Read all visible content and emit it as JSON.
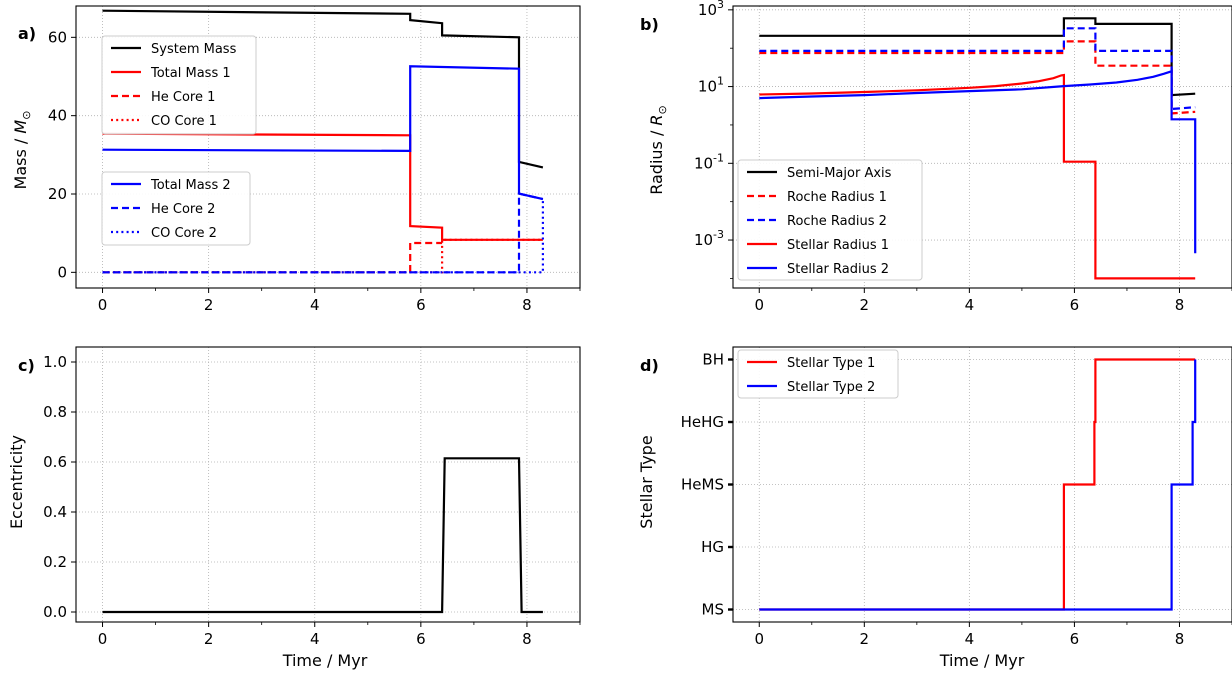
{
  "chart_data": [
    {
      "id": "a",
      "type": "line",
      "panel_label": "a)",
      "xlabel": "",
      "ylabel": "Mass / M_⊙",
      "ylabel_main": "Mass / ",
      "ylabel_sym": "M",
      "ylabel_sub": "⊙",
      "xlim": [
        -0.5,
        9.0
      ],
      "ylim": [
        -4,
        68
      ],
      "xticks": [
        "0",
        "2",
        "4",
        "6",
        "8"
      ],
      "yticks": [
        "0",
        "20",
        "40",
        "60"
      ],
      "grid": true,
      "legend_placement": "upper-left and middle-left",
      "series": [
        {
          "name": "System Mass",
          "color": "#000000",
          "dash": "solid",
          "x": [
            0,
            5.8,
            5.8,
            6.4,
            6.4,
            7.85,
            7.85,
            8.3
          ],
          "y": [
            66.8,
            66.0,
            64.4,
            63.6,
            60.5,
            60.0,
            28.2,
            26.8
          ]
        },
        {
          "name": "Total Mass 1",
          "color": "#ff0000",
          "dash": "solid",
          "x": [
            0,
            5.8,
            5.8,
            6.4,
            6.4,
            8.3
          ],
          "y": [
            35.4,
            35.0,
            11.8,
            11.4,
            8.3,
            8.3
          ]
        },
        {
          "name": "He Core 1",
          "color": "#ff0000",
          "dash": "dashed",
          "x": [
            0,
            5.8,
            5.8,
            6.4
          ],
          "y": [
            0,
            0,
            7.5,
            7.5
          ]
        },
        {
          "name": "CO Core 1",
          "color": "#ff0000",
          "dash": "dotted",
          "x": [
            0,
            6.4,
            6.4,
            8.3
          ],
          "y": [
            0,
            0,
            8.3,
            8.3
          ]
        },
        {
          "name": "Total Mass 2",
          "color": "#0000ff",
          "dash": "solid",
          "x": [
            0,
            5.8,
            5.8,
            7.85,
            7.85,
            8.3
          ],
          "y": [
            31.3,
            31.0,
            52.6,
            52.0,
            20.1,
            18.7
          ]
        },
        {
          "name": "He Core 2",
          "color": "#0000ff",
          "dash": "dashed",
          "x": [
            0,
            7.85,
            7.85,
            8.3
          ],
          "y": [
            0,
            0,
            20.1,
            18.7
          ]
        },
        {
          "name": "CO Core 2",
          "color": "#0000ff",
          "dash": "dotted",
          "x": [
            0,
            8.3,
            8.3
          ],
          "y": [
            0,
            0,
            18.7
          ]
        }
      ]
    },
    {
      "id": "b",
      "type": "line",
      "panel_label": "b)",
      "xlabel": "",
      "ylabel": "Radius / R_⊙",
      "ylabel_main": "Radius / ",
      "ylabel_sym": "R",
      "ylabel_sub": "⊙",
      "yscale": "log",
      "xlim": [
        -0.5,
        9.0
      ],
      "ylim_log10": [
        -4.25,
        3.1
      ],
      "xticks": [
        "0",
        "2",
        "4",
        "6",
        "8"
      ],
      "yticks_log10": [
        1,
        -1,
        -3,
        3
      ],
      "grid": true,
      "legend_placement": "lower-left",
      "series": [
        {
          "name": "Semi-Major Axis",
          "color": "#000000",
          "dash": "solid",
          "x": [
            0,
            5.8,
            5.8,
            6.4,
            6.4,
            7.85,
            7.85,
            8.3
          ],
          "y": [
            210,
            210,
            600,
            600,
            430,
            430,
            6.0,
            6.5
          ]
        },
        {
          "name": "Roche Radius 1",
          "color": "#ff0000",
          "dash": "dashed",
          "x": [
            0,
            5.8,
            5.8,
            6.4,
            6.4,
            7.85,
            7.85,
            8.3
          ],
          "y": [
            75,
            75,
            150,
            150,
            35,
            35,
            2.0,
            2.2
          ]
        },
        {
          "name": "Roche Radius 2",
          "color": "#0000ff",
          "dash": "dashed",
          "x": [
            0,
            5.8,
            5.8,
            6.4,
            6.4,
            7.85,
            7.85,
            8.3
          ],
          "y": [
            85,
            85,
            330,
            330,
            85,
            85,
            2.6,
            2.9
          ]
        },
        {
          "name": "Stellar Radius 1",
          "color": "#ff0000",
          "dash": "solid",
          "x": [
            0,
            1,
            2,
            3,
            4,
            4.5,
            5,
            5.3,
            5.6,
            5.75,
            5.8,
            5.8,
            6.4,
            6.4,
            8.3
          ],
          "y": [
            6.2,
            6.6,
            7.2,
            8.0,
            9.3,
            10.3,
            12.0,
            13.6,
            16.5,
            19.5,
            20,
            0.11,
            0.11,
            0.0001,
            0.0001
          ]
        },
        {
          "name": "Stellar Radius 2",
          "color": "#0000ff",
          "dash": "solid",
          "x": [
            0,
            1,
            2,
            3,
            4,
            5,
            5.8,
            6.3,
            6.8,
            7.2,
            7.5,
            7.7,
            7.85,
            7.85,
            8.3,
            8.3
          ],
          "y": [
            5.0,
            5.5,
            6.0,
            6.8,
            7.6,
            8.5,
            10.3,
            11.3,
            12.8,
            15.0,
            18.0,
            21.5,
            25,
            1.4,
            1.4,
            0.00045
          ]
        }
      ]
    },
    {
      "id": "c",
      "type": "line",
      "panel_label": "c)",
      "xlabel": "Time / Myr",
      "ylabel": "Eccentricity",
      "xlim": [
        -0.5,
        9.0
      ],
      "ylim": [
        -0.04,
        1.06
      ],
      "xticks": [
        "0",
        "2",
        "4",
        "6",
        "8"
      ],
      "yticks": [
        "0.0",
        "0.2",
        "0.4",
        "0.6",
        "0.8",
        "1.0"
      ],
      "grid": true,
      "series": [
        {
          "name": "",
          "color": "#000000",
          "dash": "solid",
          "x": [
            0,
            6.4,
            6.45,
            7.85,
            7.9,
            8.3
          ],
          "y": [
            0,
            0,
            0.615,
            0.615,
            0,
            0
          ]
        }
      ]
    },
    {
      "id": "d",
      "type": "line",
      "panel_label": "d)",
      "xlabel": "Time / Myr",
      "ylabel": "Stellar Type",
      "xlim": [
        -0.5,
        9.0
      ],
      "ylim": [
        -0.2,
        4.2
      ],
      "xticks": [
        "0",
        "2",
        "4",
        "6",
        "8"
      ],
      "yticks": [
        "MS",
        "HG",
        "HeMS",
        "HeHG",
        "BH"
      ],
      "grid": true,
      "legend_placement": "upper-left",
      "series": [
        {
          "name": "Stellar Type 1",
          "color": "#ff0000",
          "dash": "solid",
          "x": [
            0,
            5.8,
            5.8,
            6.38,
            6.38,
            6.4,
            6.4,
            8.3
          ],
          "y": [
            0,
            0,
            2,
            2,
            3,
            3,
            4,
            4
          ]
        },
        {
          "name": "Stellar Type 2",
          "color": "#0000ff",
          "dash": "solid",
          "x": [
            0,
            7.85,
            7.85,
            8.25,
            8.25,
            8.3,
            8.3
          ],
          "y": [
            0,
            0,
            2,
            2,
            3,
            3,
            4
          ]
        }
      ]
    }
  ]
}
